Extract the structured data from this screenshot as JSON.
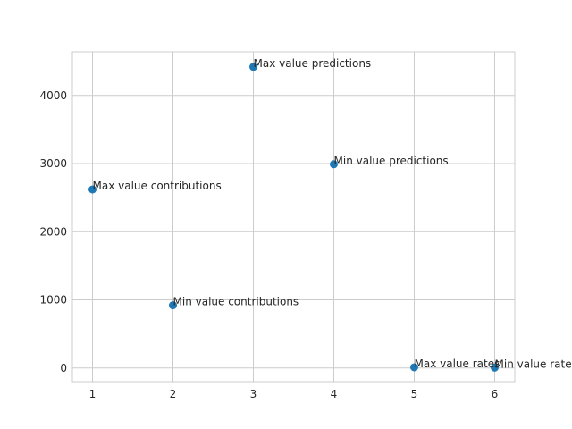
{
  "chart_data": {
    "type": "scatter",
    "title": "",
    "xlabel": "",
    "ylabel": "",
    "xlim": [
      0.75,
      6.25
    ],
    "ylim": [
      -200,
      4640
    ],
    "xticks": [
      1,
      2,
      3,
      4,
      5,
      6
    ],
    "yticks": [
      0,
      1000,
      2000,
      3000,
      4000
    ],
    "grid": true,
    "point_color": "#1f77b4",
    "points": [
      {
        "x": 1,
        "y": 2620,
        "label": "Max value contributions"
      },
      {
        "x": 2,
        "y": 920,
        "label": "Min value contributions"
      },
      {
        "x": 3,
        "y": 4420,
        "label": "Max value predictions"
      },
      {
        "x": 4,
        "y": 2990,
        "label": "Min value predictions"
      },
      {
        "x": 5,
        "y": 10,
        "label": "Max value rates"
      },
      {
        "x": 6,
        "y": 5,
        "label": "Min value rates"
      }
    ]
  }
}
